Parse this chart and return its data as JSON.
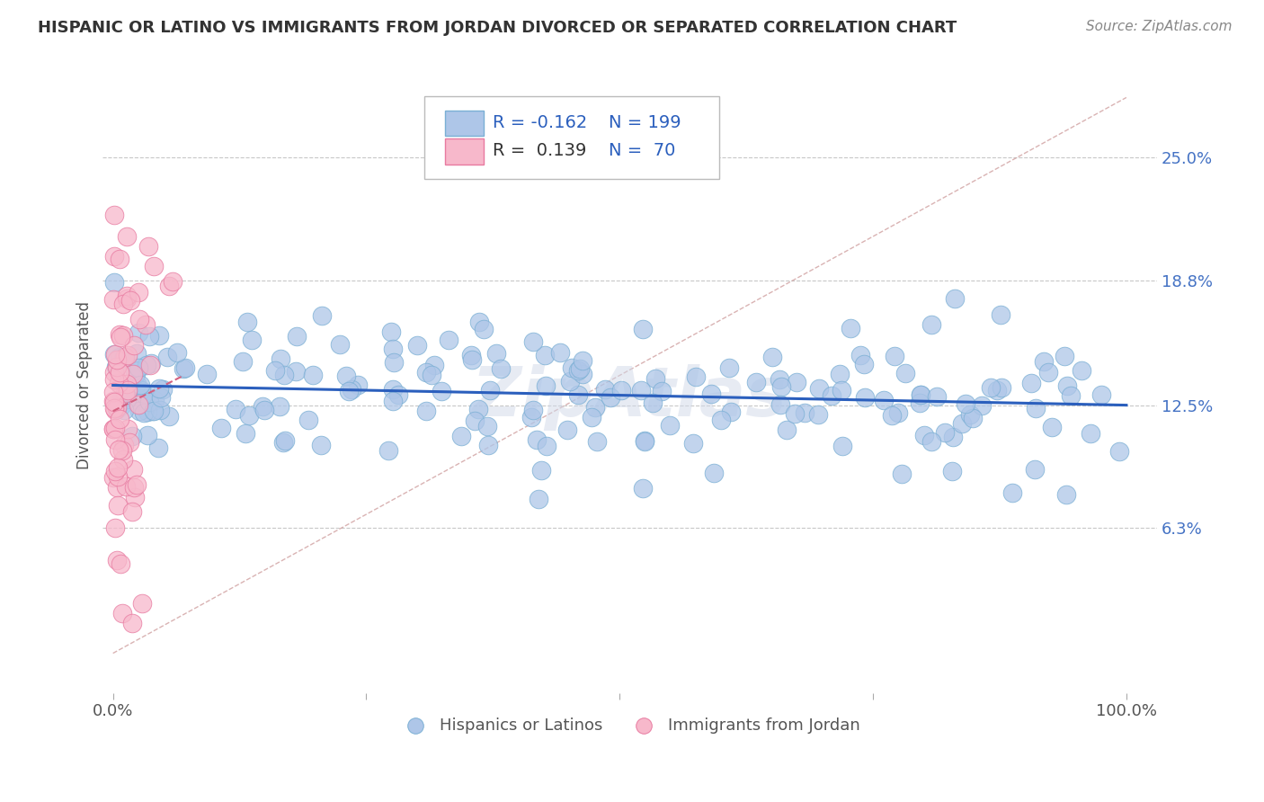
{
  "title": "HISPANIC OR LATINO VS IMMIGRANTS FROM JORDAN DIVORCED OR SEPARATED CORRELATION CHART",
  "source": "Source: ZipAtlas.com",
  "ylabel": "Divorced or Separated",
  "blue_color": "#aec6e8",
  "blue_edge": "#7aafd4",
  "pink_color": "#f7b8cb",
  "pink_edge": "#e87aa0",
  "blue_line_color": "#2b5fbd",
  "pink_line_color": "#d46080",
  "diagonal_color": "#d0a0a0",
  "legend_R_blue": "R = -0.162",
  "legend_N_blue": "N = 199",
  "legend_R_pink": "R =  0.139",
  "legend_N_pink": "N =  70",
  "legend_label_blue": "Hispanics or Latinos",
  "legend_label_pink": "Immigrants from Jordan",
  "blue_R": -0.162,
  "blue_N": 199,
  "pink_R": 0.139,
  "pink_N": 70,
  "watermark": "ZipAtlas",
  "background_color": "#ffffff",
  "grid_color": "#c8c8c8",
  "ytick_values": [
    6.3,
    12.5,
    18.8,
    25.0
  ],
  "ytick_labels": [
    "6.3%",
    "12.5%",
    "18.8%",
    "25.0%"
  ],
  "xtick_values": [
    0,
    100
  ],
  "xtick_labels": [
    "0.0%",
    "100.0%"
  ],
  "ylim_min": -2,
  "ylim_max": 29,
  "xlim_min": -1,
  "xlim_max": 103
}
